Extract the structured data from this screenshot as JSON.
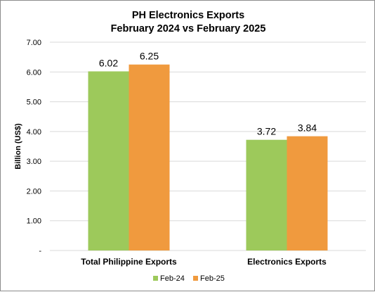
{
  "chart_data": {
    "type": "bar",
    "title_lines": [
      "PH Electronics Exports",
      "February 2024 vs February 2025"
    ],
    "ylabel": "Billion (US$)",
    "xlabel": "",
    "categories": [
      "Total Philippine Exports",
      "Electronics Exports"
    ],
    "series": [
      {
        "name": "Feb-24",
        "values": [
          6.02,
          3.72
        ],
        "labels": [
          "6.02",
          "3.72"
        ],
        "color": "#9dc95b"
      },
      {
        "name": "Feb-25",
        "values": [
          6.25,
          3.84
        ],
        "labels": [
          "6.25",
          "3.84"
        ],
        "color": "#f09a3e"
      }
    ],
    "ylim": [
      0,
      7
    ],
    "yticks": [
      0,
      1,
      2,
      3,
      4,
      5,
      6,
      7
    ],
    "ytick_labels": [
      "-",
      "1.00",
      "2.00",
      "3.00",
      "4.00",
      "5.00",
      "6.00",
      "7.00"
    ],
    "grid": true,
    "gridline_color": "#d9d9d9",
    "legend_position": "bottom"
  }
}
